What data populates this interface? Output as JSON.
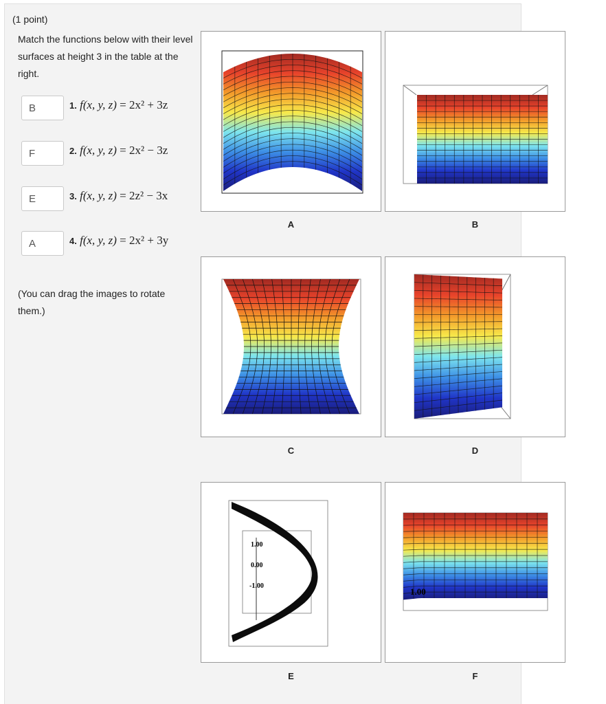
{
  "question": {
    "points": "(1 point)",
    "instructions": "Match the functions below with their level surfaces at height 3 in the table at the right.",
    "note": "(You can drag the images to rotate them.)"
  },
  "items": [
    {
      "answer": "B",
      "number": "1.",
      "fx": "f(x, y, z)",
      "rhs": "2x² + 3z"
    },
    {
      "answer": "F",
      "number": "2.",
      "fx": "f(x, y, z)",
      "rhs": "2x² − 3z"
    },
    {
      "answer": "E",
      "number": "3.",
      "fx": "f(x, y, z)",
      "rhs": "2z² − 3x"
    },
    {
      "answer": "A",
      "number": "4.",
      "fx": "f(x, y, z)",
      "rhs": "2x² + 3y"
    }
  ],
  "graphs": [
    {
      "letter": "A"
    },
    {
      "letter": "B"
    },
    {
      "letter": "C"
    },
    {
      "letter": "D"
    },
    {
      "letter": "E",
      "tick_labels": [
        "1.00",
        "0.00",
        "-1.00"
      ]
    },
    {
      "letter": "F",
      "tick_labels": [
        "1.00"
      ]
    }
  ],
  "colors": {
    "panel_bg": "#f3f3f3",
    "gradient": [
      "#a12a22",
      "#e8432b",
      "#f39a2a",
      "#f7e94a",
      "#7de5ee",
      "#3d8fe6",
      "#2035c8",
      "#1a1d7a"
    ],
    "surface_e": "#0c0c0c"
  }
}
